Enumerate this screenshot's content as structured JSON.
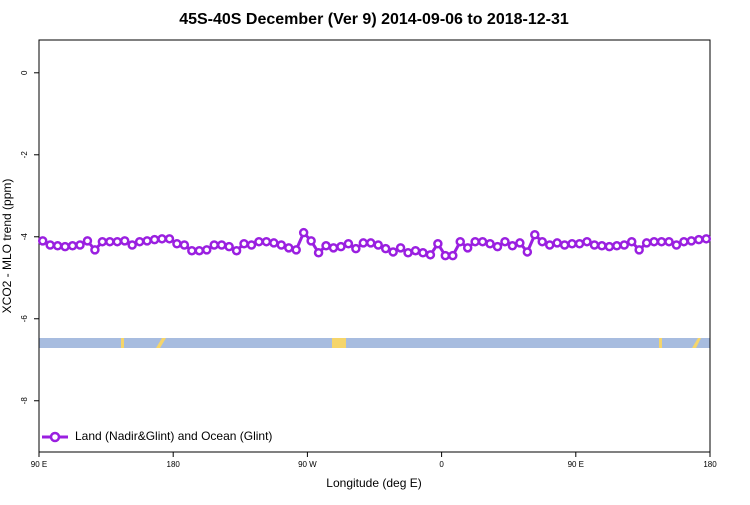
{
  "chart_data": {
    "type": "line",
    "title": "45S-40S December (Ver 9)   2014-09-06 to 2018-12-31",
    "x_label": "Longitude (deg E)",
    "y_label": "XCO2 - MLO trend (ppm)",
    "xlim": [
      90,
      540
    ],
    "ylim": [
      -9.25,
      0.8
    ],
    "xticks": [
      {
        "value": 90,
        "label": "90 E"
      },
      {
        "value": 180,
        "label": "180"
      },
      {
        "value": 270,
        "label": "90 W"
      },
      {
        "value": 360,
        "label": "0"
      },
      {
        "value": 450,
        "label": "90 E"
      },
      {
        "value": 540,
        "label": "180"
      }
    ],
    "yticks": [
      0,
      -2,
      -4,
      -6,
      -8
    ],
    "legend": "bottom-left",
    "x": [
      92.5,
      97.5,
      102.5,
      107.5,
      112.5,
      117.5,
      122.5,
      127.5,
      132.5,
      137.5,
      142.5,
      147.5,
      152.5,
      157.5,
      162.5,
      167.5,
      172.5,
      177.5,
      182.5,
      187.5,
      192.5,
      197.5,
      202.5,
      207.5,
      212.5,
      217.5,
      222.5,
      227.5,
      232.5,
      237.5,
      242.5,
      247.5,
      252.5,
      257.5,
      262.5,
      267.5,
      272.5,
      277.5,
      282.5,
      287.5,
      292.5,
      297.5,
      302.5,
      307.5,
      312.5,
      317.5,
      322.5,
      327.5,
      332.5,
      337.5,
      342.5,
      347.5,
      352.5,
      357.5,
      362.5,
      367.5,
      372.5,
      377.5,
      382.5,
      387.5,
      392.5,
      397.5,
      402.5,
      407.5,
      412.5,
      417.5,
      422.5,
      427.5,
      432.5,
      437.5,
      442.5,
      447.5,
      452.5,
      457.5,
      462.5,
      467.5,
      472.5,
      477.5,
      482.5,
      487.5,
      492.5,
      497.5,
      502.5,
      507.5,
      512.5,
      517.5,
      522.5,
      527.5,
      532.5,
      537.5
    ],
    "series": [
      {
        "name": "Land (Nadir&Glint) and Ocean (Glint)",
        "color": "#9a1fe0",
        "values": [
          -4.1,
          -4.2,
          -4.22,
          -4.24,
          -4.22,
          -4.2,
          -4.1,
          -4.32,
          -4.12,
          -4.12,
          -4.12,
          -4.1,
          -4.2,
          -4.12,
          -4.1,
          -4.07,
          -4.05,
          -4.05,
          -4.17,
          -4.2,
          -4.34,
          -4.34,
          -4.32,
          -4.2,
          -4.2,
          -4.24,
          -4.34,
          -4.17,
          -4.2,
          -4.12,
          -4.12,
          -4.15,
          -4.2,
          -4.27,
          -4.32,
          -3.9,
          -4.1,
          -4.39,
          -4.22,
          -4.27,
          -4.24,
          -4.17,
          -4.29,
          -4.15,
          -4.15,
          -4.2,
          -4.29,
          -4.37,
          -4.27,
          -4.39,
          -4.34,
          -4.39,
          -4.44,
          -4.17,
          -4.46,
          -4.46,
          -4.12,
          -4.27,
          -4.12,
          -4.12,
          -4.17,
          -4.24,
          -4.12,
          -4.22,
          -4.15,
          -4.37,
          -3.95,
          -4.12,
          -4.2,
          -4.15,
          -4.2,
          -4.17,
          -4.17,
          -4.12,
          -4.2,
          -4.22,
          -4.24,
          -4.22,
          -4.2,
          -4.12,
          -4.32,
          -4.15,
          -4.12,
          -4.12,
          -4.12,
          -4.2,
          -4.12,
          -4.1,
          -4.07,
          -4.05
        ]
      }
    ]
  }
}
